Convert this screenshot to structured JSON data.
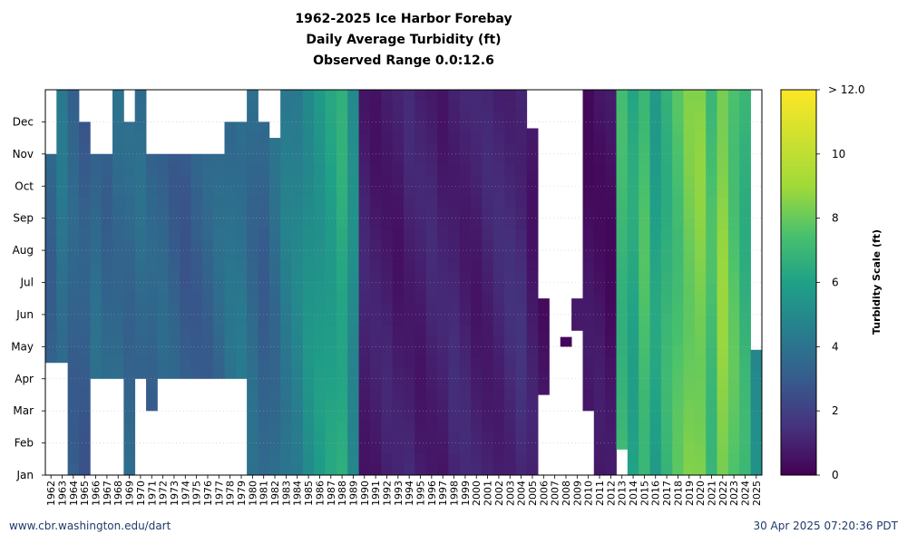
{
  "chart_data": {
    "type": "heatmap",
    "title_lines": [
      "1962-2025 Ice Harbor Forebay",
      "Daily Average Turbidity (ft)",
      "Observed Range 0.0:12.6"
    ],
    "x_tick_labels": [
      "1962",
      "1963",
      "1964",
      "1965",
      "1966",
      "1967",
      "1968",
      "1969",
      "1970",
      "1971",
      "1972",
      "1973",
      "1974",
      "1975",
      "1976",
      "1977",
      "1978",
      "1979",
      "1980",
      "1981",
      "1982",
      "1983",
      "1984",
      "1985",
      "1986",
      "1987",
      "1988",
      "1989",
      "1990",
      "1991",
      "1992",
      "1993",
      "1994",
      "1995",
      "1996",
      "1997",
      "1998",
      "1999",
      "2000",
      "2001",
      "2002",
      "2003",
      "2004",
      "2005",
      "2006",
      "2007",
      "2008",
      "2009",
      "2010",
      "2011",
      "2012",
      "2013",
      "2014",
      "2015",
      "2016",
      "2017",
      "2018",
      "2019",
      "2020",
      "2021",
      "2022",
      "2023",
      "2024",
      "2025"
    ],
    "y_tick_labels": [
      "Jan",
      "Feb",
      "Mar",
      "Apr",
      "May",
      "Jun",
      "Jul",
      "Aug",
      "Sep",
      "Oct",
      "Nov",
      "Dec"
    ],
    "colorbar": {
      "label": "Turbidity Scale (ft)",
      "ticks": [
        "0",
        "2",
        "4",
        "6",
        "8",
        "10"
      ],
      "max_label": "> 12.0",
      "range": [
        0,
        12
      ],
      "colormap": "viridis"
    },
    "grid": "dotted horizontal",
    "years": [
      {
        "year": 1962,
        "start_month": 3.5,
        "end_month": 10,
        "value": 3.4
      },
      {
        "year": 1963,
        "start_month": 3.5,
        "end_month": 12,
        "value": 4.0
      },
      {
        "year": 1964,
        "start_month": 0,
        "end_month": 12,
        "value": 3.3
      },
      {
        "year": 1965,
        "start_month": 0,
        "end_month": 11,
        "value": 3.0
      },
      {
        "year": 1966,
        "start_month": 3,
        "end_month": 10,
        "value": 3.6
      },
      {
        "year": 1967,
        "start_month": 3,
        "end_month": 10,
        "value": 3.4
      },
      {
        "year": 1968,
        "start_month": 3,
        "end_month": 12,
        "value": 3.7
      },
      {
        "year": 1969,
        "start_month": 0,
        "end_month": 11,
        "value": 3.5
      },
      {
        "year": 1970,
        "start_month": 3,
        "end_month": 12,
        "value": 3.6
      },
      {
        "year": 1971,
        "start_month": 2,
        "end_month": 10,
        "value": 3.3
      },
      {
        "year": 1972,
        "start_month": 3,
        "end_month": 10,
        "value": 3.4
      },
      {
        "year": 1973,
        "start_month": 3,
        "end_month": 10,
        "value": 3.2
      },
      {
        "year": 1974,
        "start_month": 3,
        "end_month": 10,
        "value": 3.0
      },
      {
        "year": 1975,
        "start_month": 3,
        "end_month": 10,
        "value": 3.2
      },
      {
        "year": 1976,
        "start_month": 3,
        "end_month": 10,
        "value": 3.3
      },
      {
        "year": 1977,
        "start_month": 3,
        "end_month": 10,
        "value": 3.5
      },
      {
        "year": 1978,
        "start_month": 3,
        "end_month": 11,
        "value": 3.8
      },
      {
        "year": 1979,
        "start_month": 3,
        "end_month": 11,
        "value": 4.0
      },
      {
        "year": 1980,
        "start_month": 0,
        "end_month": 12,
        "value": 3.6
      },
      {
        "year": 1981,
        "start_month": 0,
        "end_month": 11,
        "value": 3.3
      },
      {
        "year": 1982,
        "start_month": 0,
        "end_month": 10.5,
        "value": 3.7
      },
      {
        "year": 1983,
        "start_month": 0,
        "end_month": 12,
        "value": 4.3
      },
      {
        "year": 1984,
        "start_month": 0,
        "end_month": 12,
        "value": 4.6
      },
      {
        "year": 1985,
        "start_month": 0,
        "end_month": 12,
        "value": 5.2
      },
      {
        "year": 1986,
        "start_month": 0,
        "end_month": 12,
        "value": 5.6
      },
      {
        "year": 1987,
        "start_month": 0,
        "end_month": 12,
        "value": 6.0
      },
      {
        "year": 1988,
        "start_month": 0,
        "end_month": 12,
        "value": 6.4
      },
      {
        "year": 1989,
        "start_month": 0,
        "end_month": 12,
        "value": 5.0
      },
      {
        "year": 1990,
        "start_month": 0,
        "end_month": 12,
        "value": 0.9
      },
      {
        "year": 1991,
        "start_month": 0,
        "end_month": 12,
        "value": 0.8
      },
      {
        "year": 1992,
        "start_month": 0,
        "end_month": 12,
        "value": 0.9
      },
      {
        "year": 1993,
        "start_month": 0,
        "end_month": 12,
        "value": 0.8
      },
      {
        "year": 1994,
        "start_month": 0,
        "end_month": 12,
        "value": 1.0
      },
      {
        "year": 1995,
        "start_month": 0,
        "end_month": 12,
        "value": 0.9
      },
      {
        "year": 1996,
        "start_month": 0,
        "end_month": 12,
        "value": 1.0
      },
      {
        "year": 1997,
        "start_month": 0,
        "end_month": 12,
        "value": 0.9
      },
      {
        "year": 1998,
        "start_month": 0,
        "end_month": 12,
        "value": 1.1
      },
      {
        "year": 1999,
        "start_month": 0,
        "end_month": 12,
        "value": 1.0
      },
      {
        "year": 2000,
        "start_month": 0,
        "end_month": 12,
        "value": 0.9
      },
      {
        "year": 2001,
        "start_month": 0,
        "end_month": 12,
        "value": 1.0
      },
      {
        "year": 2002,
        "start_month": 0,
        "end_month": 12,
        "value": 1.1
      },
      {
        "year": 2003,
        "start_month": 0,
        "end_month": 12,
        "value": 1.2
      },
      {
        "year": 2004,
        "start_month": 0,
        "end_month": 12,
        "value": 1.3
      },
      {
        "year": 2005,
        "start_month": 0,
        "end_month": 10.8,
        "value": 0.8
      },
      {
        "year": 2006,
        "start_month": 2.5,
        "end_month": 5.5,
        "value": 0.6
      },
      {
        "year": 2008,
        "start_month": 4,
        "end_month": 4.3,
        "value": 0.4
      },
      {
        "year": 2009,
        "start_month": 4.5,
        "end_month": 5.5,
        "value": 0.5
      },
      {
        "year": 2010,
        "start_month": 2,
        "end_month": 12,
        "value": 0.5
      },
      {
        "year": 2011,
        "start_month": 0,
        "end_month": 12,
        "value": 0.6
      },
      {
        "year": 2012,
        "start_month": 0,
        "end_month": 12,
        "value": 0.5
      },
      {
        "year": 2013,
        "start_month": 0.8,
        "end_month": 12,
        "value": 7.0
      },
      {
        "year": 2014,
        "start_month": 0,
        "end_month": 12,
        "value": 6.2
      },
      {
        "year": 2015,
        "start_month": 0,
        "end_month": 12,
        "value": 7.3
      },
      {
        "year": 2016,
        "start_month": 0,
        "end_month": 12,
        "value": 6.0
      },
      {
        "year": 2017,
        "start_month": 0,
        "end_month": 12,
        "value": 6.8
      },
      {
        "year": 2018,
        "start_month": 0,
        "end_month": 12,
        "value": 7.5
      },
      {
        "year": 2019,
        "start_month": 0,
        "end_month": 12,
        "value": 8.2
      },
      {
        "year": 2020,
        "start_month": 0,
        "end_month": 12,
        "value": 8.4
      },
      {
        "year": 2021,
        "start_month": 0,
        "end_month": 12,
        "value": 7.2
      },
      {
        "year": 2022,
        "start_month": 0,
        "end_month": 12,
        "value": 8.6
      },
      {
        "year": 2023,
        "start_month": 0,
        "end_month": 12,
        "value": 7.6
      },
      {
        "year": 2024,
        "start_month": 0,
        "end_month": 12,
        "value": 6.8
      },
      {
        "year": 2025,
        "start_month": 0,
        "end_month": 3.9,
        "value": 5.0
      }
    ]
  },
  "footer": {
    "left": "www.cbr.washington.edu/dart",
    "right": "30 Apr 2025 07:20:36 PDT"
  }
}
